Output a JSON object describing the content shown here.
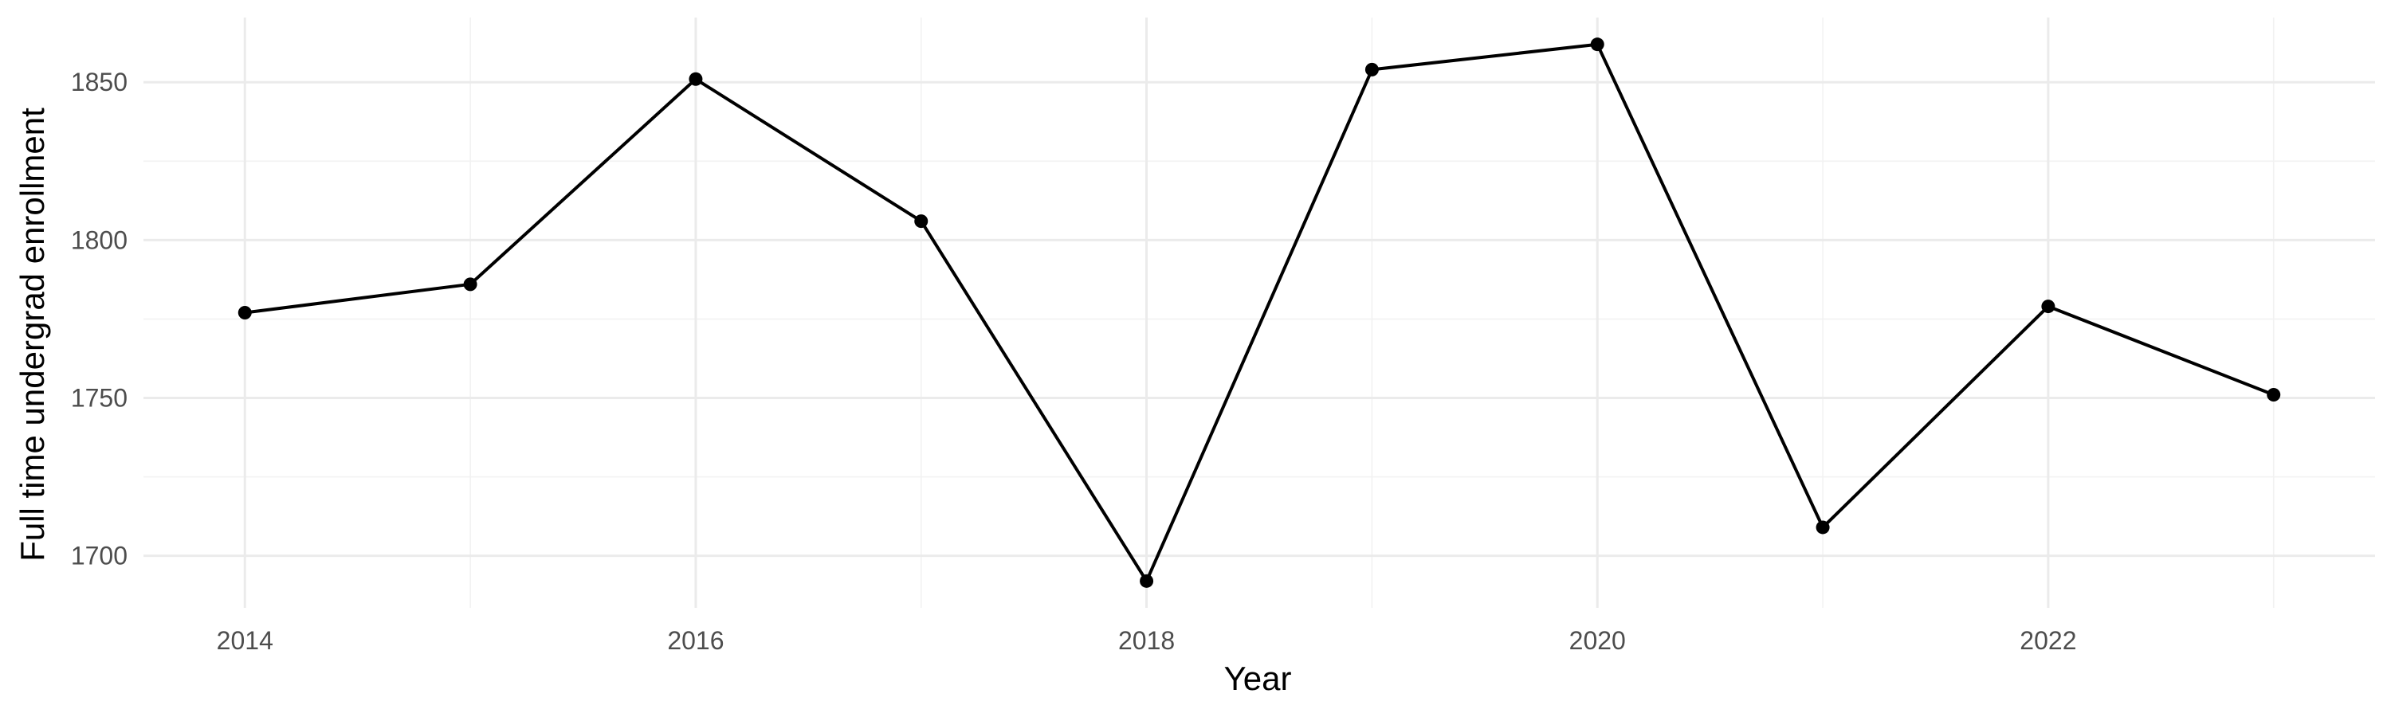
{
  "chart_data": {
    "type": "line",
    "title": "",
    "xlabel": "Year",
    "ylabel": "Full time undergrad enrollment",
    "x": [
      2014,
      2015,
      2016,
      2017,
      2018,
      2019,
      2020,
      2021,
      2022,
      2023
    ],
    "series": [
      {
        "values": [
          1777,
          1786,
          1851,
          1806,
          1692,
          1854,
          1862,
          1709,
          1779,
          1751
        ]
      }
    ],
    "x_ticks": [
      2014,
      2016,
      2018,
      2020,
      2022
    ],
    "x_tick_labels": [
      "2014",
      "2016",
      "2018",
      "2020",
      "2022"
    ],
    "y_ticks": [
      1700,
      1750,
      1800,
      1850
    ],
    "y_tick_labels": [
      "1700",
      "1750",
      "1800",
      "1850"
    ],
    "xlim": [
      2013.55,
      2023.45
    ],
    "ylim": [
      1683.5,
      1870.5
    ],
    "grid": true,
    "legend": "none",
    "colors": {
      "line": "#000000",
      "point": "#000000",
      "grid": "#ebebeb",
      "background": "#ffffff"
    }
  }
}
